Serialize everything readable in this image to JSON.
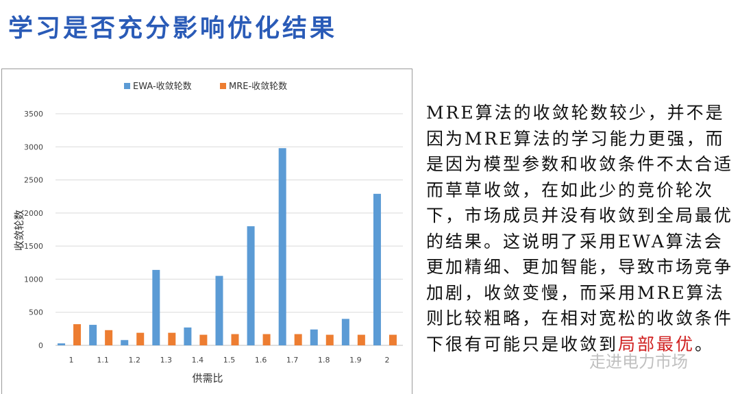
{
  "title": "学习是否充分影响优化结果",
  "body_text": "MRE算法的收敛轮数较少，并不是因为MRE算法的学习能力更强，而是因为模型参数和收敛条件不太合适而草草收敛，在如此少的竞价轮次下，市场成员并没有收敛到全局最优的结果。这说明了采用EWA算法会更加精细、更加智能，导致市场竞争加剧，收敛变慢，而采用MRE算法则比较粗略，在相对宽松的收敛条件下很有可能只是收敛到",
  "body_text_highlight": "局部最优",
  "body_text_end": "。",
  "watermark": "走进电力市场",
  "chart_data": {
    "type": "bar",
    "categories": [
      "1",
      "1.1",
      "1.2",
      "1.3",
      "1.4",
      "1.5",
      "1.6",
      "1.7",
      "1.8",
      "1.9",
      "2"
    ],
    "series": [
      {
        "name": "EWA-收敛轮数",
        "color": "#5b9bd5",
        "values": [
          30,
          310,
          80,
          1140,
          270,
          1050,
          1800,
          2980,
          240,
          400,
          2290
        ]
      },
      {
        "name": "MRE-收敛轮数",
        "color": "#ed7d31",
        "values": [
          320,
          230,
          190,
          190,
          160,
          170,
          170,
          170,
          160,
          160,
          160
        ]
      }
    ],
    "xlabel": "供需比",
    "ylabel": "收敛轮数",
    "ylim": [
      0,
      3500
    ],
    "yticks": [
      "0",
      "500",
      "1000",
      "1500",
      "2000",
      "2500",
      "3000",
      "3500"
    ],
    "grid": true,
    "legend": "top"
  }
}
